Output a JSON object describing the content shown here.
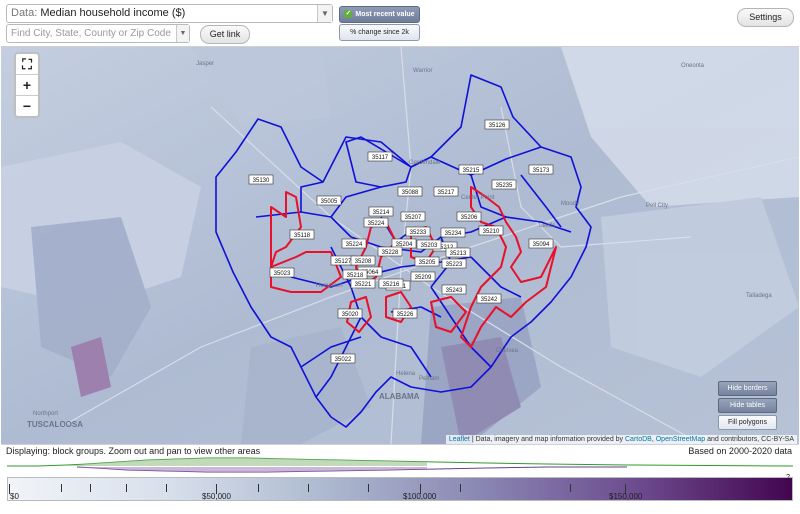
{
  "toolbar": {
    "data_label": "Data:",
    "data_value": "Median household income ($)",
    "search_placeholder": "Find City, State, County or Zip Code",
    "get_link": "Get link",
    "most_recent": "Most recent value",
    "pct_change": "% change since 2k",
    "settings": "Settings"
  },
  "map": {
    "zoom_in": "+",
    "zoom_out": "−",
    "buttons": {
      "hide_borders": "Hide borders",
      "hide_labels": "Hide tables",
      "fill_polygons": "Fill polygons"
    },
    "attribution": {
      "leaflet": "Leaflet",
      "text": " | Data, imagery and map information provided by ",
      "cartodb": "CartoDB",
      "sep": ", ",
      "osm": "OpenStreetMap",
      "tail": " and contributors, CC-BY-SA"
    },
    "places": [
      {
        "name": "Jasper"
      },
      {
        "name": "Warrior"
      },
      {
        "name": "Gardendale"
      },
      {
        "name": "Center Point"
      },
      {
        "name": "Moody"
      },
      {
        "name": "Pell City"
      },
      {
        "name": "Leeds"
      },
      {
        "name": "Hueytown"
      },
      {
        "name": "Chelsea"
      },
      {
        "name": "Pelham"
      },
      {
        "name": "Helena"
      },
      {
        "name": "ALABAMA"
      },
      {
        "name": "Talladega"
      },
      {
        "name": "Northport"
      },
      {
        "name": "TUSCALOOSA"
      },
      {
        "name": "Oneonta"
      }
    ],
    "zip_labels": [
      "35126",
      "35117",
      "35215",
      "35173",
      "35130",
      "35235",
      "35088",
      "35217",
      "35005",
      "35214",
      "35207",
      "35206",
      "35210",
      "35118",
      "35224",
      "35234",
      "35094",
      "35212",
      "35127",
      "35023",
      "35208",
      "35064",
      "35205",
      "35209",
      "35223",
      "35243",
      "35242",
      "35020",
      "35226",
      "35022",
      "35224",
      "35204",
      "35228",
      "35211",
      "35213",
      "35203",
      "35218",
      "35233",
      "35221",
      "35216"
    ]
  },
  "status": {
    "displaying": "Displaying: block groups. Zoom out and pan to view other areas",
    "based_on": "Based on 2000-2020 data"
  },
  "legend": {
    "ticks": [
      "$0",
      "$50,000",
      "$100,000",
      "$150,000"
    ],
    "help": "?"
  },
  "colors": {
    "accent_boundary": "#1010d8",
    "highlight_boundary": "#e8102a",
    "low_income": "#f1f4f8",
    "high_income": "#42064f"
  }
}
